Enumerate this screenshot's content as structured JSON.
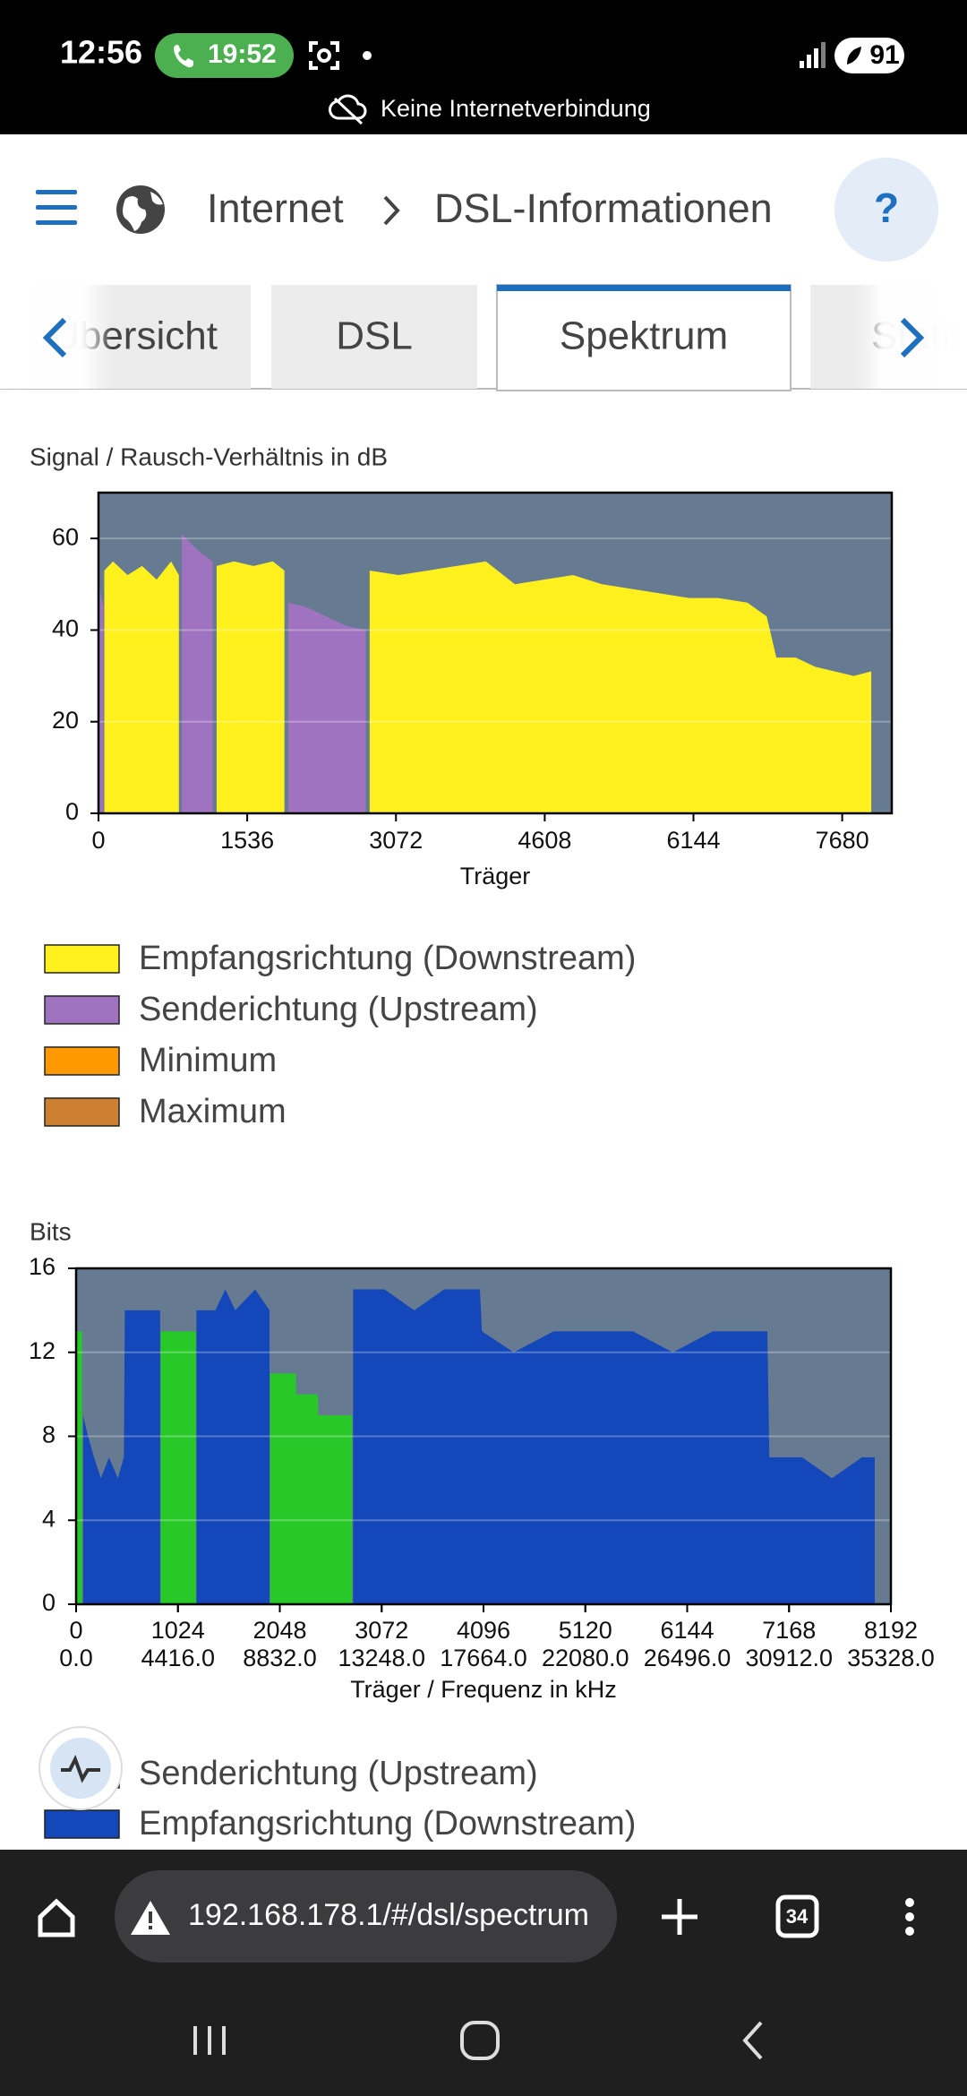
{
  "status_bar": {
    "time": "12:56",
    "call_timer": "19:52",
    "battery": "91",
    "notice": "Keine Internetverbindung"
  },
  "header": {
    "breadcrumb": [
      "Internet",
      "DSL-Informationen"
    ],
    "help": "?"
  },
  "tabs": {
    "items": [
      "Übersicht",
      "DSL",
      "Spektrum",
      "Statistik"
    ],
    "active": 2
  },
  "chart_data": [
    {
      "type": "area",
      "title": "Signal / Rausch-Verhältnis in dB",
      "xlabel": "Träger",
      "xlim": [
        0,
        8192
      ],
      "xticks": [
        0,
        1536,
        3072,
        4608,
        6144,
        7680
      ],
      "ylim": [
        0,
        70
      ],
      "yticks": [
        0,
        20,
        40,
        60
      ],
      "grid": true,
      "background": "#667a91",
      "series": [
        {
          "name": "Empfangsrichtung (Downstream)",
          "color": "#fff01e",
          "x": [
            60,
            150,
            300,
            450,
            600,
            750,
            830,
            1000,
            1220,
            1400,
            1600,
            1800,
            1920,
            2300,
            2800,
            3100,
            3400,
            3700,
            4000,
            4300,
            4600,
            4900,
            5200,
            5500,
            5800,
            6100,
            6400,
            6700,
            6900,
            7000,
            7200,
            7400,
            7600,
            7800,
            7980
          ],
          "values": [
            53,
            55,
            52,
            54,
            51,
            55,
            52,
            null,
            54,
            55,
            54,
            55,
            53,
            null,
            53,
            52,
            53,
            54,
            55,
            50,
            51,
            52,
            50,
            49,
            48,
            47,
            47,
            46,
            43,
            34,
            34,
            32,
            31,
            30,
            31
          ]
        },
        {
          "name": "Senderichtung (Upstream)",
          "color": "#a073c0",
          "x": [
            5,
            50,
            400,
            860,
            950,
            1050,
            1180,
            1600,
            1960,
            2150,
            2350,
            2550,
            2760
          ],
          "values": [
            50,
            45,
            null,
            61,
            59,
            57,
            55,
            null,
            46,
            45,
            43,
            41,
            40
          ]
        },
        {
          "name": "Minimum",
          "color": "#ff9900",
          "x": [],
          "values": []
        },
        {
          "name": "Maximum",
          "color": "#cd7f32",
          "x": [],
          "values": []
        }
      ]
    },
    {
      "type": "area",
      "title": "Bits",
      "xlabel": "Träger / Frequenz in kHz",
      "xlim": [
        0,
        8192
      ],
      "xticks": [
        0,
        1024,
        2048,
        3072,
        4096,
        5120,
        6144,
        7168,
        8192
      ],
      "x2lim": [
        0,
        35328
      ],
      "x2ticks": [
        {
          "value": 0,
          "label": "0.0"
        },
        {
          "value": 4416,
          "label": "4416.0"
        },
        {
          "value": 8832,
          "label": "8832.0"
        },
        {
          "value": 13248,
          "label": "13248.0"
        },
        {
          "value": 17664,
          "label": "17664.0"
        },
        {
          "value": 22080,
          "label": "22080.0"
        },
        {
          "value": 26496,
          "label": "26496.0"
        },
        {
          "value": 30912,
          "label": "30912.0"
        },
        {
          "value": 35328,
          "label": "35328.0"
        }
      ],
      "ylim": [
        0,
        16
      ],
      "yticks": [
        0,
        4,
        8,
        12,
        16
      ],
      "grid": true,
      "background": "#667a91",
      "series": [
        {
          "name": "Senderichtung (Upstream)",
          "color": "#27c827",
          "x": [
            0,
            60,
            400,
            850,
            1205,
            1600,
            1950,
            2210,
            2215,
            2430,
            2435,
            2775
          ],
          "values": [
            13,
            13,
            null,
            13,
            13,
            null,
            11,
            11,
            10,
            10,
            9,
            9
          ]
        },
        {
          "name": "Empfangsrichtung (Downstream)",
          "color": "#1447b9",
          "x": [
            70,
            120,
            180,
            250,
            330,
            420,
            480,
            490,
            600,
            800,
            845,
            1000,
            1210,
            1400,
            1500,
            1600,
            1800,
            1945,
            2300,
            2785,
            3100,
            3400,
            3700,
            4000,
            4060,
            4080,
            4400,
            4800,
            5200,
            5600,
            6000,
            6400,
            6800,
            6950,
            6970,
            7300,
            7600,
            7900,
            8030
          ],
          "values": [
            9,
            8,
            7,
            6,
            7,
            6,
            7,
            14,
            14,
            14,
            14,
            null,
            14,
            14,
            15,
            14,
            15,
            14,
            null,
            15,
            15,
            14,
            15,
            15,
            15,
            13,
            12,
            13,
            13,
            13,
            12,
            13,
            13,
            13,
            7,
            7,
            6,
            7,
            7
          ]
        }
      ]
    }
  ],
  "browser": {
    "url": "192.168.178.1/#/dsl/spectrum",
    "tab_count": "34"
  }
}
